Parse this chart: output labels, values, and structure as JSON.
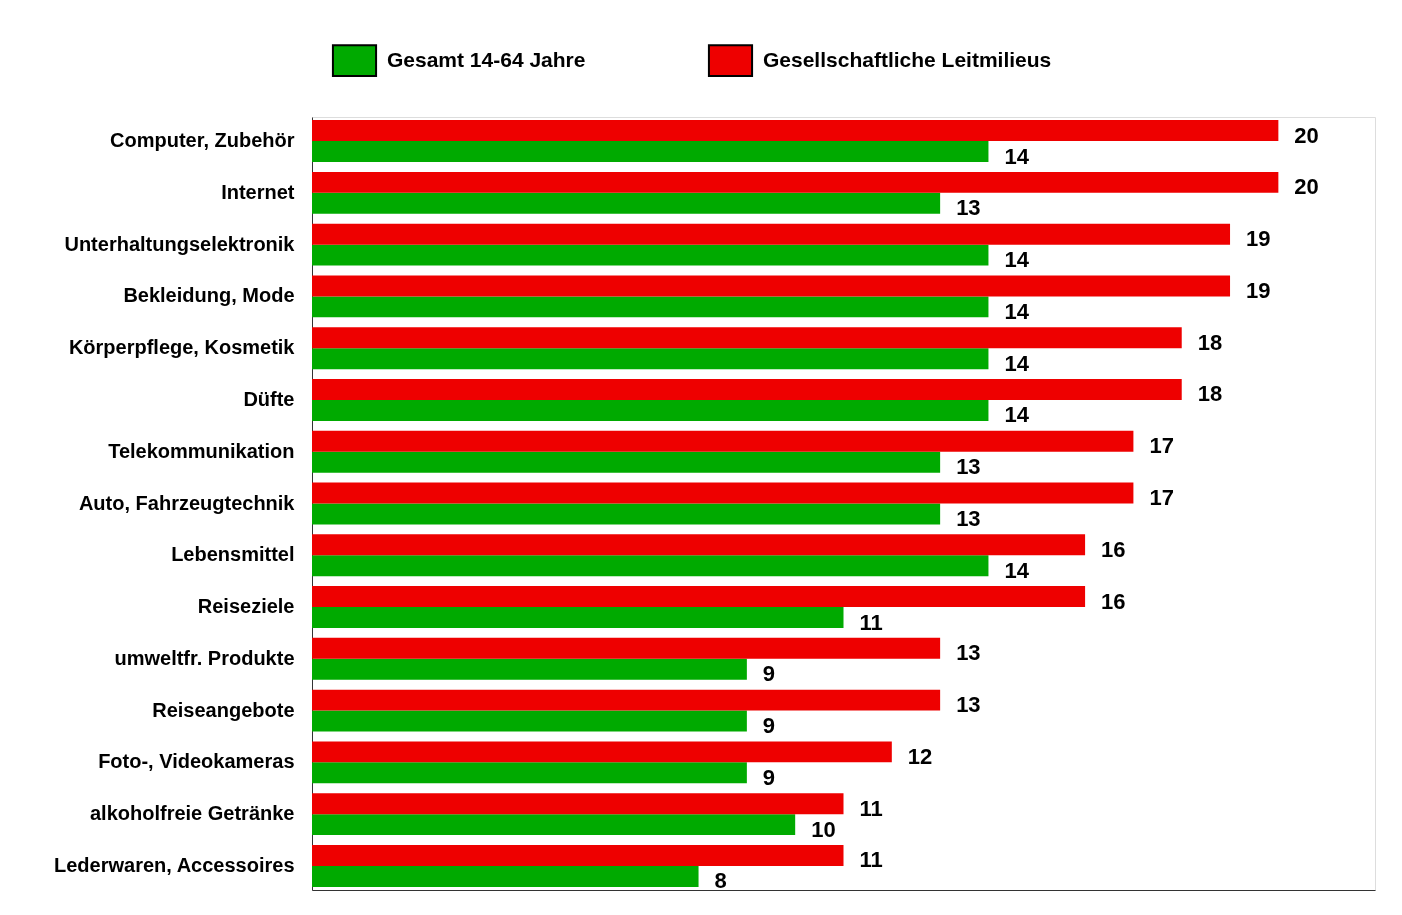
{
  "chart_data": {
    "type": "bar",
    "orientation": "horizontal",
    "categories": [
      "Computer, Zubehör",
      "Internet",
      "Unterhaltungselektronik",
      "Bekleidung, Mode",
      "Körperpflege, Kosmetik",
      "Düfte",
      "Telekommunikation",
      "Auto, Fahrzeugtechnik",
      "Lebensmittel",
      "Reiseziele",
      "umweltfr. Produkte",
      "Reiseangebote",
      "Foto-, Videokameras",
      "alkoholfreie Getränke",
      "Lederwaren, Accessoires"
    ],
    "series": [
      {
        "name": "Gesamt 14-64 Jahre",
        "color": "#00aa00",
        "values": [
          14,
          13,
          14,
          14,
          14,
          14,
          13,
          13,
          14,
          11,
          9,
          9,
          9,
          10,
          8
        ]
      },
      {
        "name": "Gesellschaftliche Leitmilieus",
        "color": "#ee0000",
        "values": [
          20,
          20,
          19,
          19,
          18,
          18,
          17,
          17,
          16,
          16,
          13,
          13,
          12,
          11,
          11
        ]
      }
    ],
    "xlim": [
      0,
      22
    ],
    "data_labels": true,
    "legend": "top",
    "tick_labels": "y"
  }
}
